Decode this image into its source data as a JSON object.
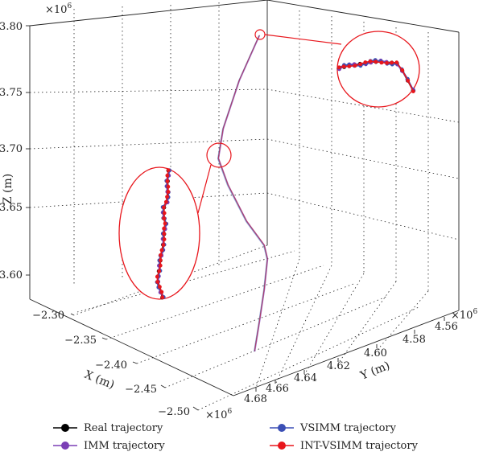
{
  "chart_data": {
    "type": "line",
    "subtype": "3d-trajectory",
    "title": "",
    "axes": {
      "x": {
        "label": "X (m)",
        "multiplier": "×10",
        "exponent": "6",
        "ticks": [
          "−2.30",
          "−2.35",
          "−2.40",
          "−2.45",
          "−2.50"
        ],
        "range": [
          -2.5,
          -2.3
        ]
      },
      "y": {
        "label": "Y (m)",
        "multiplier": "×10",
        "exponent": "6",
        "ticks": [
          "4.68",
          "4.66",
          "4.64",
          "4.62",
          "4.60",
          "4.58",
          "4.56"
        ],
        "range": [
          4.56,
          4.68
        ]
      },
      "z": {
        "label": "Z (m)",
        "multiplier": "×10",
        "exponent": "6",
        "ticks": [
          "3.60",
          "3.65",
          "3.70",
          "3.75",
          "3.80"
        ],
        "range": [
          3.6,
          3.8
        ]
      }
    },
    "grid": true,
    "legend_position": "bottom",
    "series": [
      {
        "name": "Real trajectory",
        "color": "#000000",
        "marker": "circle"
      },
      {
        "name": "IMM trajectory",
        "color": "#7b3fb5",
        "marker": "circle"
      },
      {
        "name": "VSIMM trajectory",
        "color": "#3b4fb5",
        "marker": "circle"
      },
      {
        "name": "INT-VSIMM trajectory",
        "color": "#e8161c",
        "marker": "circle"
      }
    ],
    "trajectory": [
      {
        "x": -2.478,
        "y": 4.598,
        "z": 3.6
      },
      {
        "x": -2.455,
        "y": 4.592,
        "z": 3.612
      },
      {
        "x": -2.432,
        "y": 4.588,
        "z": 3.625
      },
      {
        "x": -2.425,
        "y": 4.59,
        "z": 3.64
      },
      {
        "x": -2.41,
        "y": 4.598,
        "z": 3.655
      },
      {
        "x": -2.392,
        "y": 4.602,
        "z": 3.67
      },
      {
        "x": -2.388,
        "y": 4.6,
        "z": 3.69
      },
      {
        "x": -2.385,
        "y": 4.598,
        "z": 3.71
      },
      {
        "x": -2.38,
        "y": 4.6,
        "z": 3.73
      },
      {
        "x": -2.37,
        "y": 4.603,
        "z": 3.76
      },
      {
        "x": -2.355,
        "y": 4.606,
        "z": 3.79
      }
    ]
  },
  "colors": {
    "zoom_outline": "#e8161c"
  }
}
